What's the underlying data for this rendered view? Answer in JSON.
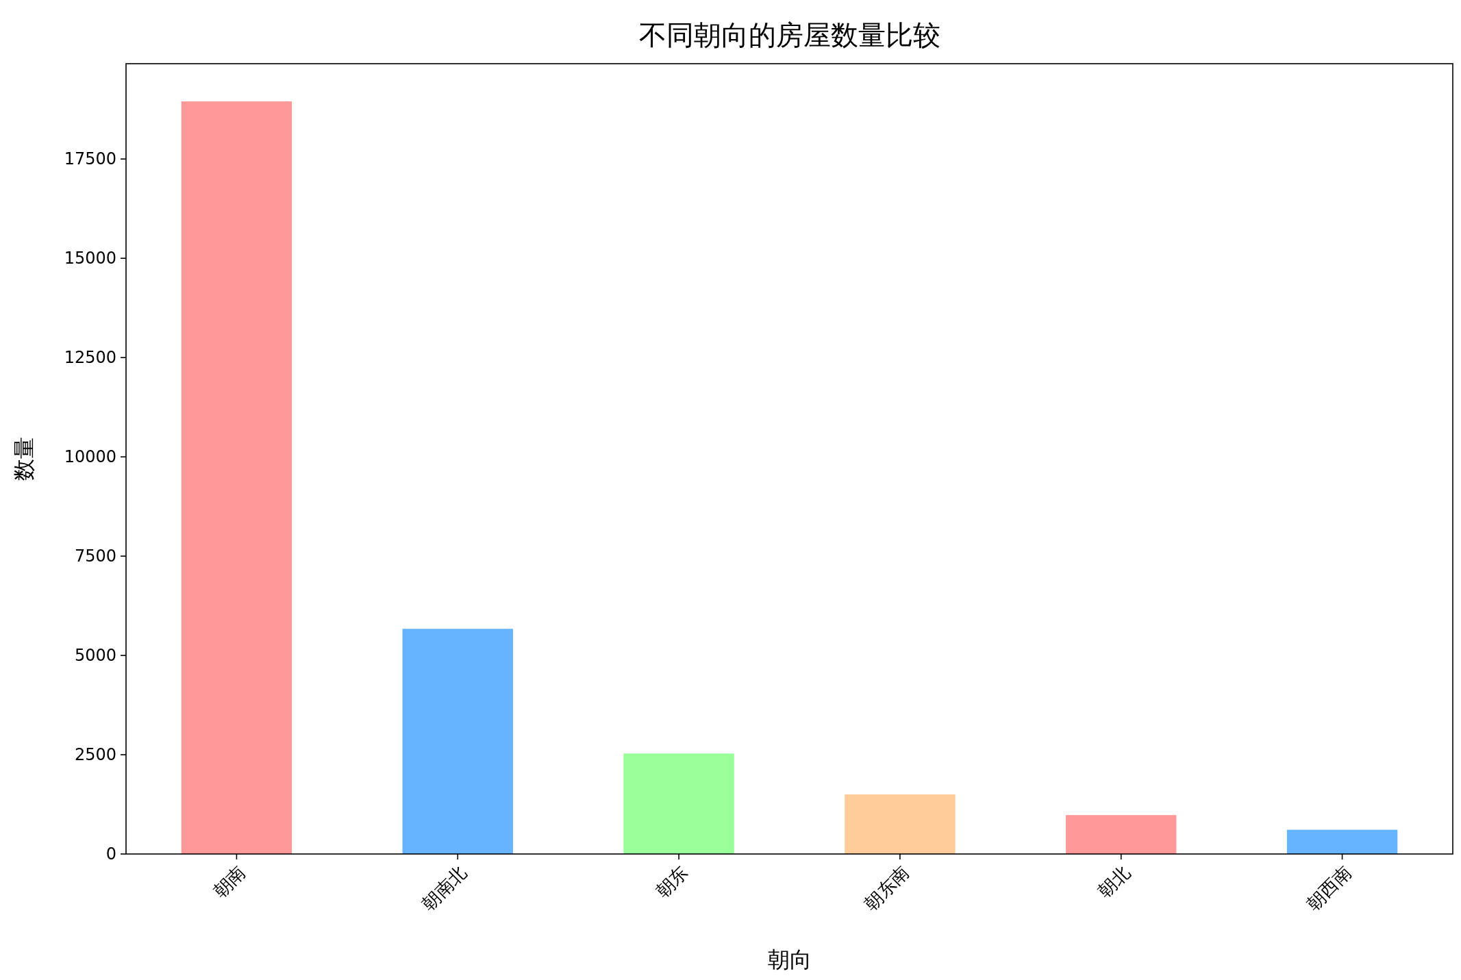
{
  "chart_data": {
    "type": "bar",
    "title": "不同朝向的房屋数量比较",
    "xlabel": "朝向",
    "ylabel": "数量",
    "categories": [
      "朝南",
      "朝南北",
      "朝东",
      "朝东南",
      "朝北",
      "朝西南"
    ],
    "values": [
      18950,
      5670,
      2530,
      1500,
      980,
      610
    ],
    "colors": [
      "#ff9999",
      "#66b3ff",
      "#99ff99",
      "#ffcc99",
      "#ff9999",
      "#66b3ff"
    ],
    "ylim": [
      0,
      19900
    ],
    "yticks": [
      0,
      2500,
      5000,
      7500,
      10000,
      12500,
      15000,
      17500
    ]
  }
}
